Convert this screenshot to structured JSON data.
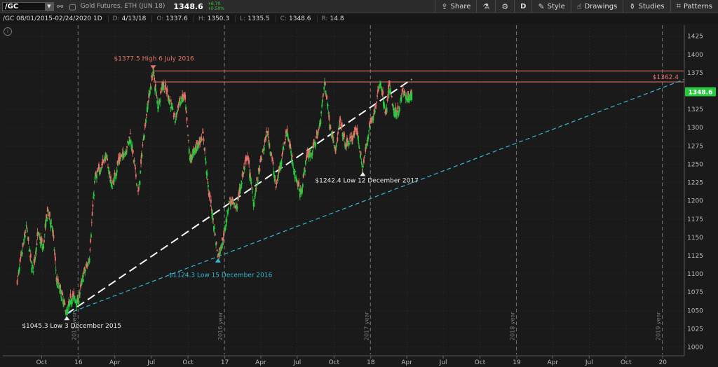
{
  "toolbar": {
    "symbol": "/GC",
    "description": "Gold Futures, ETH (JUN 18)",
    "last_price": "1348.6",
    "change": "+6.70",
    "change_pct": "+0.50%",
    "buttons": {
      "share": "Share",
      "period": "D",
      "style": "Style",
      "drawings": "Drawings",
      "studies": "Studies",
      "patterns": "Patterns"
    }
  },
  "infobar": {
    "range": "/GC 08/01/2015-02/24/2020 1D",
    "date_label": "D:",
    "date_value": "4/13/18",
    "open_label": "O:",
    "open_value": "1337.6",
    "high_label": "H:",
    "high_value": "1350.3",
    "low_label": "L:",
    "low_value": "1335.5",
    "close_label": "C:",
    "close_value": "1348.6",
    "range_label": "R:",
    "range_value": "14.8"
  },
  "colors": {
    "up": "#27c93f",
    "down": "#e8736a",
    "resistance": "#e8736a",
    "price_badge": "#27c93f",
    "white_trend": "#ffffff",
    "blue_trend": "#35b7d6",
    "grid": "#3a3a3a"
  },
  "chart_data": {
    "type": "candlestick",
    "y_axis": {
      "ylim": [
        990,
        1440
      ],
      "ticks": [
        1000,
        1025,
        1050,
        1075,
        1100,
        1125,
        1150,
        1175,
        1200,
        1225,
        1250,
        1275,
        1300,
        1325,
        1350,
        1375,
        1400,
        1425
      ]
    },
    "x_axis": {
      "range": [
        "2015-08-01",
        "2020-02-24"
      ],
      "ticks": [
        {
          "date": "2015-10-01",
          "label": "Oct"
        },
        {
          "date": "2016-01-01",
          "label": "16"
        },
        {
          "date": "2016-04-01",
          "label": "Apr"
        },
        {
          "date": "2016-07-01",
          "label": "Jul"
        },
        {
          "date": "2016-10-01",
          "label": "Oct"
        },
        {
          "date": "2017-01-01",
          "label": "17"
        },
        {
          "date": "2017-04-01",
          "label": "Apr"
        },
        {
          "date": "2017-07-01",
          "label": "Jul"
        },
        {
          "date": "2017-10-01",
          "label": "Oct"
        },
        {
          "date": "2018-01-01",
          "label": "18"
        },
        {
          "date": "2018-04-01",
          "label": "Apr"
        },
        {
          "date": "2018-07-01",
          "label": "Jul"
        },
        {
          "date": "2018-10-01",
          "label": "Oct"
        },
        {
          "date": "2019-01-01",
          "label": "19"
        },
        {
          "date": "2019-04-01",
          "label": "Apr"
        },
        {
          "date": "2019-07-01",
          "label": "Jul"
        },
        {
          "date": "2019-10-01",
          "label": "Oct"
        },
        {
          "date": "2020-01-01",
          "label": "20"
        }
      ]
    },
    "year_separators": [
      {
        "date": "2015-12-31",
        "label": "2015 year"
      },
      {
        "date": "2016-12-31",
        "label": "2016 year"
      },
      {
        "date": "2017-12-31",
        "label": "2017 year"
      },
      {
        "date": "2018-12-31",
        "label": "2018 year"
      },
      {
        "date": "2019-12-31",
        "label": "2019 year"
      }
    ],
    "price_path": [
      [
        "2015-08-01",
        1090
      ],
      [
        "2015-08-12",
        1125
      ],
      [
        "2015-08-24",
        1165
      ],
      [
        "2015-09-03",
        1120
      ],
      [
        "2015-09-10",
        1105
      ],
      [
        "2015-09-22",
        1155
      ],
      [
        "2015-10-05",
        1135
      ],
      [
        "2015-10-15",
        1185
      ],
      [
        "2015-10-28",
        1165
      ],
      [
        "2015-11-08",
        1090
      ],
      [
        "2015-11-20",
        1072
      ],
      [
        "2015-12-03",
        1045.3
      ],
      [
        "2015-12-15",
        1070
      ],
      [
        "2015-12-31",
        1062
      ],
      [
        "2016-01-12",
        1095
      ],
      [
        "2016-01-28",
        1120
      ],
      [
        "2016-02-11",
        1230
      ],
      [
        "2016-02-25",
        1245
      ],
      [
        "2016-03-10",
        1262
      ],
      [
        "2016-03-25",
        1218
      ],
      [
        "2016-04-11",
        1255
      ],
      [
        "2016-04-28",
        1268
      ],
      [
        "2016-05-10",
        1290
      ],
      [
        "2016-05-30",
        1208
      ],
      [
        "2016-06-10",
        1278
      ],
      [
        "2016-06-24",
        1338
      ],
      [
        "2016-07-06",
        1377.5
      ],
      [
        "2016-07-18",
        1328
      ],
      [
        "2016-07-29",
        1360
      ],
      [
        "2016-08-12",
        1345
      ],
      [
        "2016-08-30",
        1310
      ],
      [
        "2016-09-09",
        1335
      ],
      [
        "2016-09-23",
        1342
      ],
      [
        "2016-10-06",
        1255
      ],
      [
        "2016-10-20",
        1272
      ],
      [
        "2016-11-08",
        1290
      ],
      [
        "2016-11-22",
        1210
      ],
      [
        "2016-12-02",
        1178
      ],
      [
        "2016-12-15",
        1124.3
      ],
      [
        "2016-12-28",
        1148
      ],
      [
        "2017-01-12",
        1200
      ],
      [
        "2017-01-30",
        1190
      ],
      [
        "2017-02-15",
        1235
      ],
      [
        "2017-02-27",
        1262
      ],
      [
        "2017-03-14",
        1198
      ],
      [
        "2017-03-31",
        1250
      ],
      [
        "2017-04-17",
        1295
      ],
      [
        "2017-04-28",
        1262
      ],
      [
        "2017-05-09",
        1218
      ],
      [
        "2017-05-25",
        1265
      ],
      [
        "2017-06-06",
        1297
      ],
      [
        "2017-06-20",
        1250
      ],
      [
        "2017-07-10",
        1208
      ],
      [
        "2017-07-25",
        1262
      ],
      [
        "2017-08-08",
        1268
      ],
      [
        "2017-08-25",
        1298
      ],
      [
        "2017-09-08",
        1362
      ],
      [
        "2017-09-22",
        1300
      ],
      [
        "2017-10-06",
        1270
      ],
      [
        "2017-10-16",
        1308
      ],
      [
        "2017-10-30",
        1275
      ],
      [
        "2017-11-14",
        1285
      ],
      [
        "2017-11-28",
        1295
      ],
      [
        "2017-12-12",
        1242.4
      ],
      [
        "2017-12-28",
        1300
      ],
      [
        "2018-01-10",
        1322
      ],
      [
        "2018-01-25",
        1362
      ],
      [
        "2018-02-08",
        1315
      ],
      [
        "2018-02-16",
        1358
      ],
      [
        "2018-03-01",
        1318
      ],
      [
        "2018-03-14",
        1328
      ],
      [
        "2018-03-22",
        1352
      ],
      [
        "2018-04-02",
        1337
      ],
      [
        "2018-04-13",
        1348.6
      ]
    ],
    "last_bar": {
      "date": "2018-04-13",
      "open": 1337.6,
      "high": 1350.3,
      "low": 1335.5,
      "close": 1348.6
    },
    "resistance_lines": [
      {
        "from": "2016-07-06",
        "to": "2020-02-24",
        "value": 1377.5
      },
      {
        "from": "2016-07-06",
        "to": "2020-02-24",
        "value": 1362.4,
        "label": "$1362.4"
      }
    ],
    "trendlines": [
      {
        "style": "white-dashed",
        "points": [
          [
            "2015-12-03",
            1045.3
          ],
          [
            "2018-04-13",
            1366
          ]
        ]
      },
      {
        "style": "blue-dashed",
        "points": [
          [
            "2015-12-03",
            1045.3
          ],
          [
            "2020-02-24",
            1366
          ]
        ]
      }
    ],
    "annotations": [
      {
        "date": "2016-07-06",
        "value": 1377.5,
        "text": "$1377.5 High 6 July 2016",
        "color": "resistance",
        "marker": "down"
      },
      {
        "date": "2015-12-03",
        "value": 1045.3,
        "text": "$1045.3 Low 3 December 2015",
        "color": "white",
        "marker": "up"
      },
      {
        "date": "2016-12-15",
        "value": 1124.3,
        "text": "$1124.3 Low 15 December 2016",
        "color": "blue",
        "marker": "up"
      },
      {
        "date": "2017-12-12",
        "value": 1242.4,
        "text": "$1242.4 Low 12 December 2017",
        "color": "white",
        "marker": "up"
      }
    ],
    "last_price_badge": "1348.6"
  }
}
